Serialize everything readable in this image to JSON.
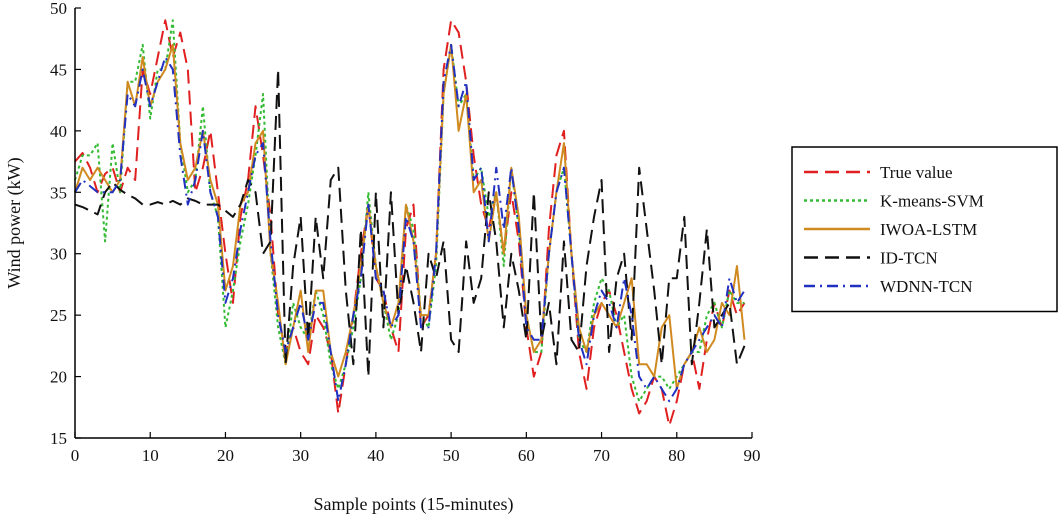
{
  "chart_data": {
    "type": "line",
    "title": "",
    "xlabel": "Sample points (15-minutes)",
    "ylabel": "Wind power (kW)",
    "xlim": [
      0,
      90
    ],
    "ylim": [
      15,
      50
    ],
    "x_ticks": [
      0,
      10,
      20,
      30,
      40,
      50,
      60,
      70,
      80,
      90
    ],
    "y_ticks": [
      15,
      20,
      25,
      30,
      35,
      40,
      45,
      50
    ],
    "grid": false,
    "legend_position": "right",
    "series": [
      {
        "name": "True value",
        "color": "#e02020",
        "dash": "long-dash",
        "values": [
          37.5,
          38.2,
          37,
          35,
          36.5,
          37,
          35,
          37,
          36,
          45,
          43,
          46,
          49,
          46,
          48,
          45,
          35,
          37,
          40,
          35,
          30,
          26,
          33,
          36,
          42,
          38,
          33,
          25,
          22,
          24,
          22,
          21,
          25,
          24,
          22,
          17,
          21,
          25,
          30,
          34,
          28,
          27,
          24,
          22,
          32,
          34,
          24,
          25,
          30,
          45,
          49,
          48,
          44,
          38,
          34,
          32,
          35,
          30,
          35,
          31,
          24,
          20,
          22,
          32,
          38,
          40,
          30,
          22,
          19,
          24,
          26,
          27,
          25,
          22,
          19,
          17,
          18,
          20,
          19,
          16,
          18,
          21,
          22,
          19,
          23,
          26,
          24,
          27,
          25,
          26
        ]
      },
      {
        "name": "K-means-SVM",
        "color": "#33bb33",
        "dash": "dotted",
        "values": [
          36,
          38,
          38,
          39,
          31,
          39,
          35,
          44,
          44,
          47,
          41,
          45,
          45,
          49,
          39,
          35,
          36,
          42,
          35,
          33,
          24,
          27,
          31,
          34,
          38,
          43,
          30,
          24,
          21,
          26,
          24,
          23,
          27,
          25,
          21,
          19,
          21,
          24,
          28,
          35,
          29,
          26,
          23,
          25,
          34,
          32,
          25,
          24,
          29,
          43,
          47,
          42,
          43,
          36,
          37,
          33,
          35,
          29,
          37,
          32,
          25,
          22,
          22,
          30,
          35,
          37,
          30,
          23,
          22,
          26,
          28,
          27,
          24,
          25,
          20,
          18,
          19,
          20,
          20,
          19,
          20,
          21,
          22,
          22,
          25,
          26,
          24,
          27,
          26,
          26
        ]
      },
      {
        "name": "IWOA-LSTM",
        "color": "#d08a20",
        "dash": "solid",
        "values": [
          35,
          37,
          36,
          37,
          36,
          35,
          36,
          44,
          42,
          46,
          42,
          44,
          45,
          47,
          39,
          36,
          37,
          40,
          36,
          34,
          27,
          29,
          34,
          35,
          39,
          40,
          30,
          26,
          21,
          24,
          27,
          22,
          27,
          27,
          22,
          20,
          22,
          25,
          29,
          34,
          29,
          26,
          24,
          26,
          34,
          31,
          25,
          25,
          30,
          43,
          47,
          40,
          43,
          35,
          36,
          31,
          35,
          30,
          37,
          33,
          25,
          22,
          23,
          30,
          35,
          39,
          30,
          24,
          22,
          25,
          26,
          25,
          24,
          26,
          28,
          21,
          21,
          20,
          24,
          25,
          19,
          21,
          22,
          24,
          22,
          23,
          26,
          25,
          29,
          23
        ]
      },
      {
        "name": "ID-TCN",
        "color": "#111111",
        "dash": "long-dash",
        "values": [
          34,
          33.8,
          33.5,
          33.2,
          35,
          35.8,
          35.2,
          34.8,
          34.5,
          34,
          34,
          34.2,
          34,
          34.3,
          34,
          34.5,
          34.3,
          34,
          34,
          34,
          33.5,
          33,
          34,
          36,
          35,
          30,
          31,
          45,
          21,
          29,
          33,
          23,
          33,
          28,
          36,
          37,
          27,
          21,
          32,
          20,
          35,
          24,
          35,
          25,
          29,
          26,
          22,
          30,
          28,
          31,
          23,
          22,
          31,
          26,
          28,
          35,
          31,
          24,
          30,
          27,
          23,
          35,
          23,
          26,
          21,
          31,
          23,
          22,
          29,
          33,
          36,
          22,
          28,
          30,
          23,
          37,
          32,
          27,
          21,
          28,
          28,
          33,
          21,
          26,
          32,
          24,
          25,
          26,
          21,
          22.5
        ]
      },
      {
        "name": "WDNN-TCN",
        "color": "#2030c0",
        "dash": "dash-dot",
        "values": [
          35,
          36,
          35.5,
          35,
          35,
          35,
          36,
          43,
          42,
          45,
          42,
          44,
          46,
          45,
          38,
          34,
          36,
          40,
          35,
          33,
          26,
          28,
          32,
          35,
          38,
          39,
          31,
          25,
          22,
          24,
          26,
          23,
          26,
          26,
          22,
          18,
          21,
          25,
          28,
          34,
          28,
          27,
          24,
          25,
          33,
          31,
          24,
          24,
          30,
          44,
          47,
          42,
          44,
          36,
          37,
          31,
          37,
          32,
          37,
          32,
          24,
          23,
          23,
          30,
          35,
          37,
          30,
          23,
          21,
          25,
          27,
          26,
          24,
          28,
          25,
          20,
          19,
          20,
          19,
          18,
          19,
          21,
          22,
          23,
          24,
          25,
          24,
          28,
          26,
          27
        ]
      }
    ]
  }
}
